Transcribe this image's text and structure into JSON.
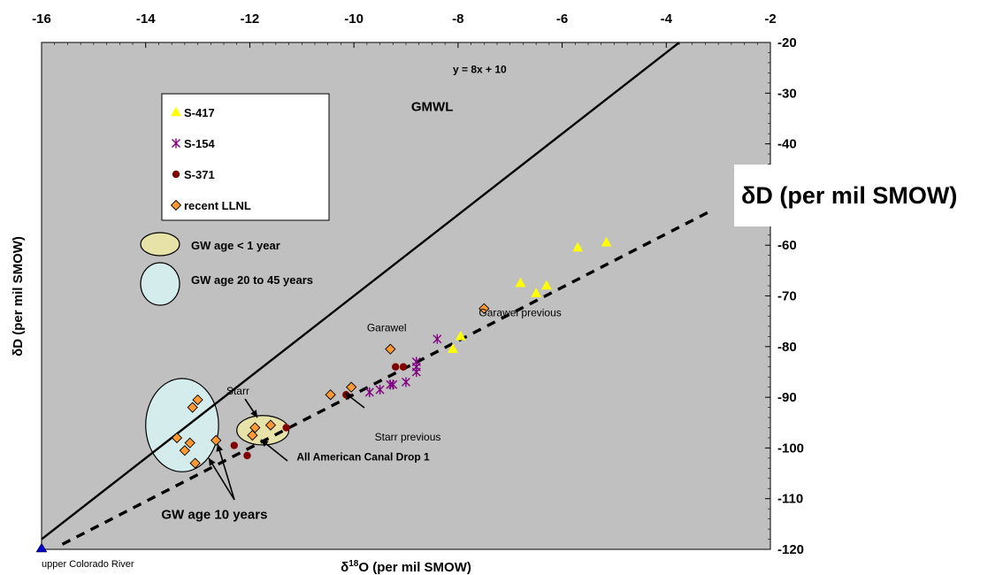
{
  "chart_data": {
    "type": "scatter",
    "xlabel_prefix": "δ",
    "xlabel_sup": "18",
    "xlabel_rest": "O (per mil SMOW)",
    "ylabel_left": "δD (per mil SMOW)",
    "ylabel_right": "δD (per mil SMOW)",
    "xlim": [
      -16,
      -2
    ],
    "ylim": [
      -120,
      -20
    ],
    "x_ticks": [
      -16,
      -14,
      -12,
      -10,
      -8,
      -6,
      -4,
      -2
    ],
    "x_tick_labels": [
      "-16",
      "-14",
      "-12",
      "-10",
      "-8",
      "-6",
      "-4",
      "-2"
    ],
    "y_ticks": [
      -20,
      -30,
      -40,
      -50,
      -60,
      -70,
      -80,
      -90,
      -100,
      -110,
      -120
    ],
    "y_tick_labels": [
      "-20",
      "-30",
      "-40",
      "",
      "-60",
      "-70",
      "-80",
      "-90",
      "-100",
      "-110",
      "-120"
    ],
    "background_color": "#c0c0c0",
    "lines": [
      {
        "label": "GMWL",
        "equation": "y = 8x + 10",
        "style": "solid",
        "color": "#000000",
        "x": [
          -16,
          -3.75
        ],
        "y": [
          -118,
          -20
        ]
      },
      {
        "label": "",
        "style": "dashed",
        "color": "#000000",
        "x": [
          -15.6,
          -3.1
        ],
        "y": [
          -119,
          -53
        ]
      }
    ],
    "series": [
      {
        "name": "S-417",
        "marker": "triangle",
        "color": "#ffff00",
        "x": [
          -5.15,
          -5.7,
          -6.3,
          -6.5,
          -6.8,
          -7.95,
          -8.1
        ],
        "y": [
          -59.5,
          -60.5,
          -68,
          -69.5,
          -67.5,
          -78,
          -80.5
        ]
      },
      {
        "name": "S-154",
        "marker": "star",
        "color": "#800080",
        "x": [
          -8.4,
          -8.8,
          -8.8,
          -8.8,
          -9.0,
          -9.25,
          -9.3,
          -9.5,
          -9.7
        ],
        "y": [
          -78.5,
          -83,
          -85,
          -84,
          -87,
          -87.5,
          -87.5,
          -88.5,
          -89
        ]
      },
      {
        "name": "S-371",
        "marker": "circle",
        "color": "#800000",
        "x": [
          -9.05,
          -9.2,
          -10.15,
          -11.3,
          -12.05,
          -12.3
        ],
        "y": [
          -84,
          -84,
          -89.5,
          -96,
          -101.5,
          -99.5
        ]
      },
      {
        "name": "recent LLNL",
        "marker": "diamond",
        "color": "#ff9933",
        "x": [
          -7.5,
          -9.3,
          -10.05,
          -10.45,
          -11.6,
          -11.9,
          -11.95,
          -12.65,
          -13.05,
          -13.0,
          -13.1,
          -13.15,
          -13.25,
          -13.4
        ],
        "y": [
          -72.5,
          -80.5,
          -88,
          -89.5,
          -95.5,
          -96,
          -97.5,
          -98.5,
          -103,
          -90.5,
          -92,
          -99,
          -100.5,
          -98
        ]
      }
    ],
    "ellipses": [
      {
        "name": "GW age < 1 year",
        "fill": "#e6e2a8",
        "cx": -11.75,
        "cy": -96.5,
        "rx": 0.5,
        "ry": 2.9
      },
      {
        "name": "GW age 20 to 45 years",
        "fill": "#d4ecec",
        "cx": -13.3,
        "cy": -95.5,
        "rx": 0.7,
        "ry": 9.2
      }
    ],
    "annotations": [
      {
        "text": "y = 8x + 10",
        "x": -8.1,
        "y": -26
      },
      {
        "text": "GMWL",
        "x": -8.9,
        "y": -33.5
      },
      {
        "text": "upper Colorado River",
        "x": -16,
        "y": -123.5
      },
      {
        "text": "Garawel",
        "x": -9.75,
        "y": -77
      },
      {
        "text": "Garawel previous",
        "x": -7.6,
        "y": -74
      },
      {
        "text": "Starr",
        "x": -12.45,
        "y": -89.5
      },
      {
        "text": "Starr previous",
        "x": -9.6,
        "y": -98.5
      },
      {
        "text": "All American Canal Drop 1",
        "x": -11.1,
        "y": -102.5
      },
      {
        "text": "GW age 10 years",
        "x": -13.7,
        "y": -114
      }
    ],
    "legend": {
      "placement": "top-left",
      "entries": [
        "S-417",
        "S-154",
        "S-371",
        "recent LLNL"
      ]
    },
    "ellipse_legend": [
      "GW age < 1 year",
      "GW age 20 to 45 years"
    ]
  }
}
